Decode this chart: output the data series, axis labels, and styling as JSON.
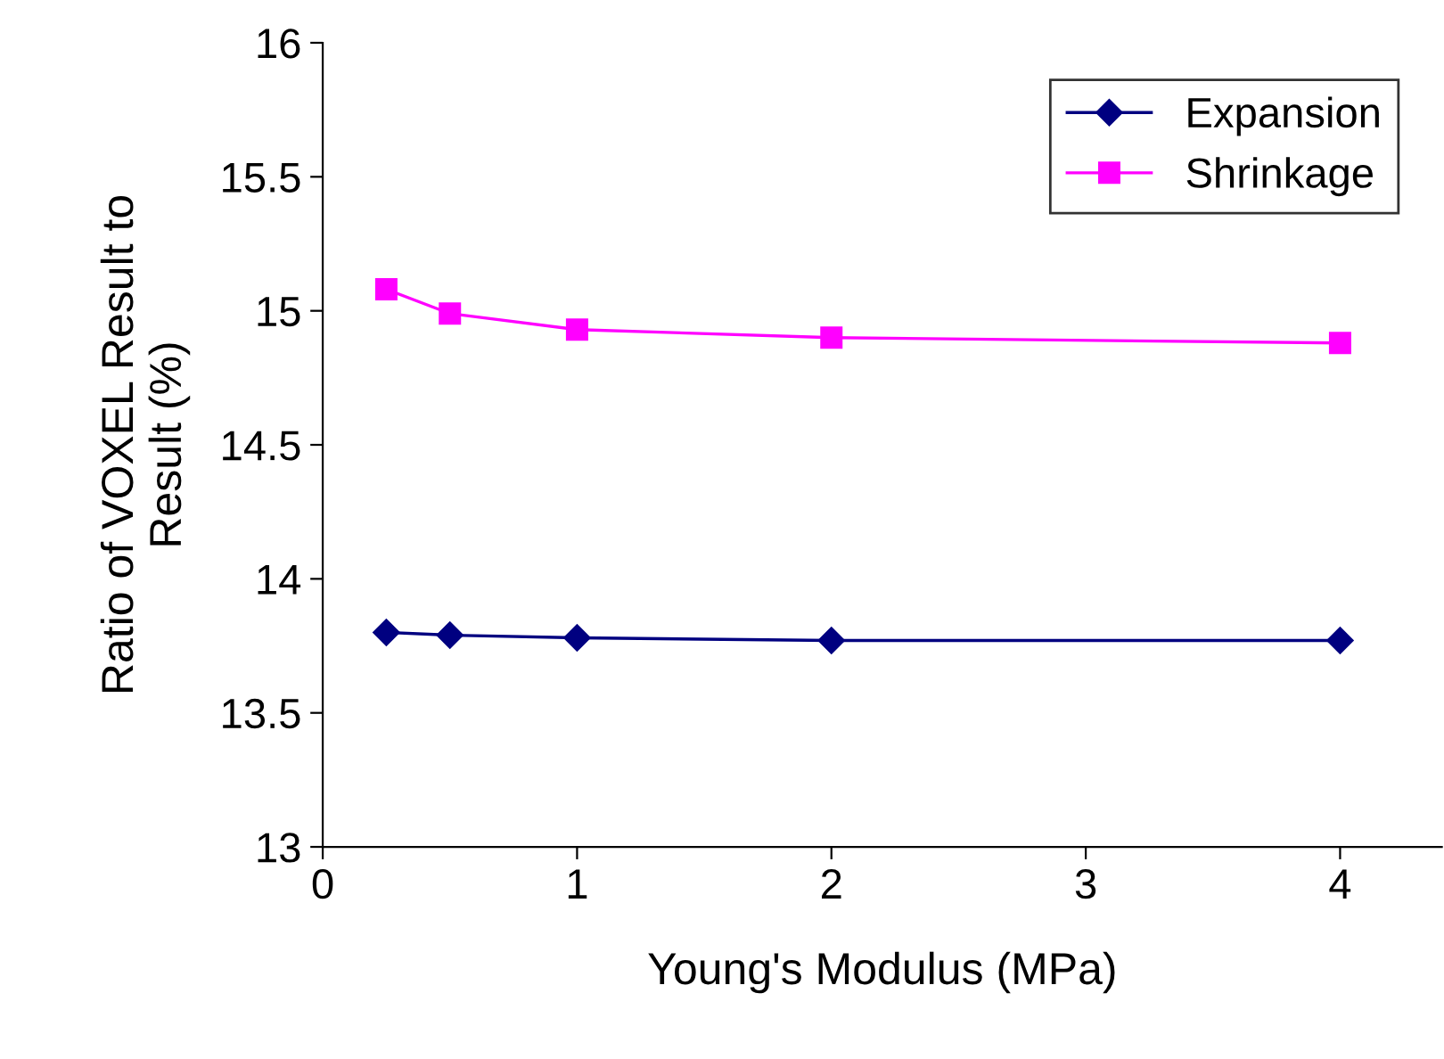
{
  "chart_data": {
    "type": "line",
    "xlabel": "Young's Modulus (MPa)",
    "ylabel": "Ratio of VOXEL Result to\nResult (%)",
    "x": [
      0.25,
      0.5,
      1,
      2,
      4
    ],
    "series": [
      {
        "name": "Expansion",
        "color": "#000080",
        "marker": "diamond",
        "values": [
          13.8,
          13.79,
          13.78,
          13.77,
          13.77
        ]
      },
      {
        "name": "Shrinkage",
        "color": "#ff00ff",
        "marker": "square",
        "values": [
          15.08,
          14.99,
          14.93,
          14.9,
          14.88
        ]
      }
    ],
    "xlim": [
      0,
      4.4
    ],
    "xticks": [
      0,
      1,
      2,
      3,
      4
    ],
    "ylim": [
      13,
      16
    ],
    "yticks": [
      13,
      13.5,
      14,
      14.5,
      15,
      15.5,
      16
    ],
    "grid": false,
    "legend": "top right",
    "line_style": "solid"
  }
}
